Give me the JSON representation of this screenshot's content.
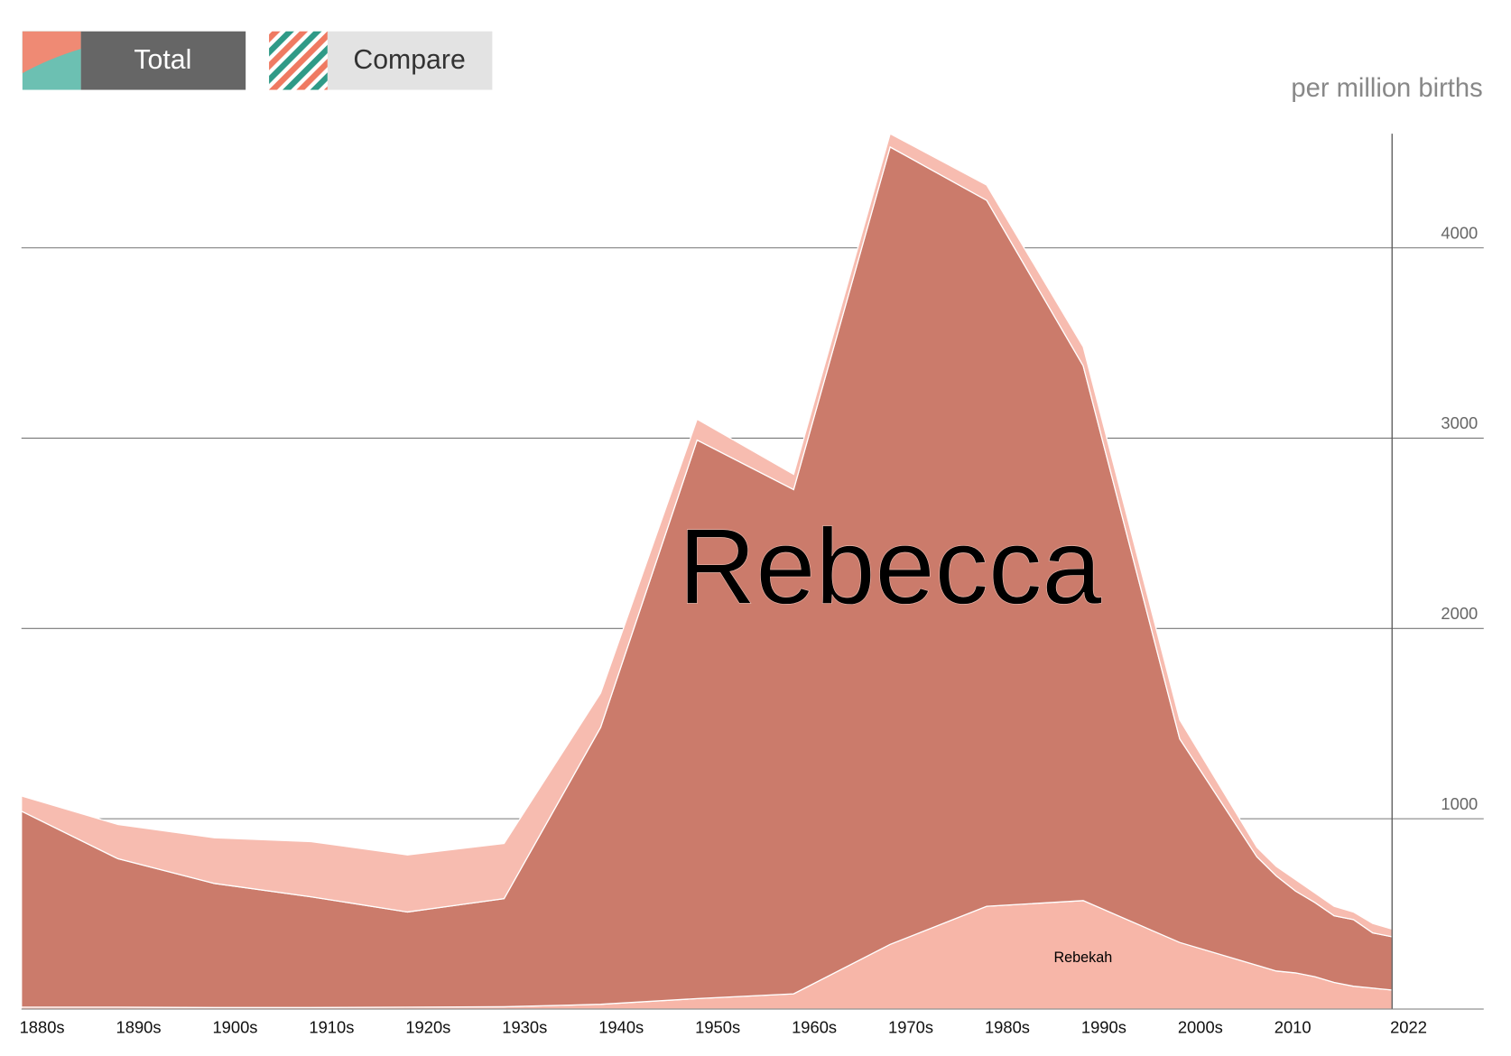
{
  "buttons": [
    "Total",
    "Compare"
  ],
  "chart_data": {
    "type": "stacked-area",
    "ylabel": "per million births",
    "x": [
      1880,
      1890,
      1900,
      1910,
      1920,
      1930,
      1940,
      1950,
      1960,
      1970,
      1980,
      1990,
      2000,
      2008,
      2010,
      2012,
      2014,
      2016,
      2018,
      2020,
      2022
    ],
    "series": [
      {
        "name": "Rebekah",
        "color": "#f7b6a8",
        "values": [
          10,
          10,
          8,
          8,
          10,
          12,
          25,
          55,
          80,
          340,
          540,
          570,
          350,
          230,
          200,
          190,
          170,
          140,
          120,
          110,
          100
        ]
      },
      {
        "name": "Rebecca",
        "color": "#cb7b6b",
        "values": [
          1030,
          780,
          652,
          582,
          500,
          568,
          1455,
          2935,
          2650,
          4190,
          3710,
          2810,
          1070,
          570,
          500,
          430,
          390,
          350,
          350,
          290,
          280
        ]
      },
      {
        "color": "#f7bcb0",
        "values": [
          80,
          180,
          240,
          290,
          300,
          290,
          180,
          110,
          80,
          70,
          80,
          100,
          100,
          50,
          50,
          60,
          50,
          50,
          40,
          50,
          40
        ]
      }
    ],
    "xlim": [
      1880,
      2022
    ],
    "xticks": [
      {
        "value": 1880,
        "label": "1880s"
      },
      {
        "value": 1890,
        "label": "1890s"
      },
      {
        "value": 1900,
        "label": "1900s"
      },
      {
        "value": 1910,
        "label": "1910s"
      },
      {
        "value": 1920,
        "label": "1920s"
      },
      {
        "value": 1930,
        "label": "1930s"
      },
      {
        "value": 1940,
        "label": "1940s"
      },
      {
        "value": 1950,
        "label": "1950s"
      },
      {
        "value": 1960,
        "label": "1960s"
      },
      {
        "value": 1970,
        "label": "1970s"
      },
      {
        "value": 1980,
        "label": "1980s"
      },
      {
        "value": 1990,
        "label": "1990s"
      },
      {
        "value": 2000,
        "label": "2000s"
      },
      2010,
      2022
    ],
    "ylim": [
      0,
      4600
    ],
    "yticks": [
      1000,
      2000,
      3000,
      4000
    ],
    "grid": true
  }
}
